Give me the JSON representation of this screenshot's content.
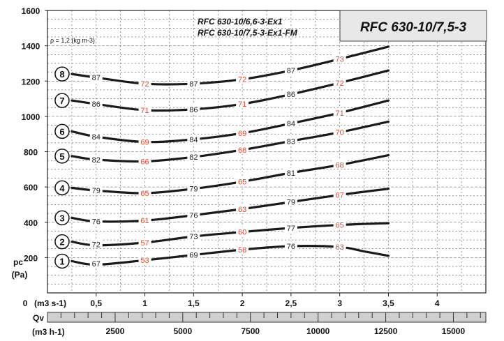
{
  "chart_data": {
    "type": "line",
    "title": "RFC 630-10/7,5-3",
    "subtitle_lines": [
      "RFC 630-10/6,6-3-Ex1",
      "RFC 630-10/7,5-3-Ex1-FM"
    ],
    "density_note": "ρ = 1,2 (kg m-3)",
    "ylabel": {
      "symbol": "pc",
      "unit": "(Pa)"
    },
    "xlabel_m3s": "(m3 s-1)",
    "xlabel_m3h": {
      "symbol": "Qv",
      "unit": "(m3 h-1)"
    },
    "x_origin_label": "0",
    "xlim": [
      0,
      4.5
    ],
    "ylim": [
      0,
      1600
    ],
    "y_ticks": [
      {
        "v": 200,
        "label": "200"
      },
      {
        "v": 400,
        "label": "400"
      },
      {
        "v": 600,
        "label": "600"
      },
      {
        "v": 800,
        "label": "800"
      },
      {
        "v": 1000,
        "label": "1000"
      },
      {
        "v": 1200,
        "label": "1200"
      },
      {
        "v": 1400,
        "label": "1400"
      },
      {
        "v": 1600,
        "label": "1600"
      }
    ],
    "x_ticks": [
      {
        "v": 0.5,
        "label": "0,5"
      },
      {
        "v": 1,
        "label": "1"
      },
      {
        "v": 1.5,
        "label": "1,5"
      },
      {
        "v": 2,
        "label": "2"
      },
      {
        "v": 2.5,
        "label": "2,5"
      },
      {
        "v": 3,
        "label": "3"
      },
      {
        "v": 3.5,
        "label": "3,5"
      },
      {
        "v": 4,
        "label": "4"
      }
    ],
    "x_ticks_m3h": [
      {
        "v": 2500,
        "label": "2500"
      },
      {
        "v": 5000,
        "label": "5000"
      },
      {
        "v": 7500,
        "label": "7500"
      },
      {
        "v": 10000,
        "label": "10000"
      },
      {
        "v": 12500,
        "label": "12500"
      },
      {
        "v": 15000,
        "label": "15000"
      }
    ],
    "grid": true,
    "series": [
      {
        "name": "1",
        "points": [
          [
            0.25,
            180
          ],
          [
            0.5,
            160
          ],
          [
            1,
            185
          ],
          [
            1.5,
            215
          ],
          [
            2,
            245
          ],
          [
            2.5,
            265
          ],
          [
            3,
            260
          ],
          [
            3.25,
            235
          ],
          [
            3.5,
            210
          ]
        ]
      },
      {
        "name": "2",
        "points": [
          [
            0.25,
            290
          ],
          [
            0.5,
            270
          ],
          [
            1,
            285
          ],
          [
            1.5,
            320
          ],
          [
            2,
            345
          ],
          [
            2.5,
            368
          ],
          [
            3,
            385
          ],
          [
            3.5,
            395
          ]
        ]
      },
      {
        "name": "3",
        "points": [
          [
            0.25,
            425
          ],
          [
            0.5,
            405
          ],
          [
            1,
            410
          ],
          [
            1.5,
            440
          ],
          [
            2,
            475
          ],
          [
            2.5,
            515
          ],
          [
            3,
            555
          ],
          [
            3.5,
            590
          ]
        ]
      },
      {
        "name": "4",
        "points": [
          [
            0.25,
            595
          ],
          [
            0.5,
            580
          ],
          [
            1,
            565
          ],
          [
            1.5,
            590
          ],
          [
            2,
            630
          ],
          [
            2.5,
            680
          ],
          [
            3,
            725
          ],
          [
            3.5,
            780
          ]
        ]
      },
      {
        "name": "5",
        "points": [
          [
            0.25,
            775
          ],
          [
            0.5,
            755
          ],
          [
            1,
            745
          ],
          [
            1.5,
            770
          ],
          [
            2,
            810
          ],
          [
            2.5,
            860
          ],
          [
            3,
            910
          ],
          [
            3.5,
            970
          ]
        ]
      },
      {
        "name": "6",
        "points": [
          [
            0.25,
            915
          ],
          [
            0.5,
            885
          ],
          [
            1,
            855
          ],
          [
            1.5,
            870
          ],
          [
            2,
            905
          ],
          [
            2.5,
            960
          ],
          [
            3,
            1020
          ],
          [
            3.5,
            1090
          ]
        ]
      },
      {
        "name": "7",
        "points": [
          [
            0.25,
            1090
          ],
          [
            0.5,
            1070
          ],
          [
            1,
            1035
          ],
          [
            1.5,
            1040
          ],
          [
            2,
            1070
          ],
          [
            2.5,
            1125
          ],
          [
            3,
            1190
          ],
          [
            3.5,
            1260
          ]
        ]
      },
      {
        "name": "8",
        "points": [
          [
            0.25,
            1240
          ],
          [
            0.5,
            1220
          ],
          [
            1,
            1185
          ],
          [
            1.5,
            1185
          ],
          [
            2,
            1210
          ],
          [
            2.5,
            1260
          ],
          [
            3,
            1325
          ],
          [
            3.5,
            1395
          ]
        ]
      }
    ],
    "annotations_black": [
      {
        "x": 0.5,
        "y": 165,
        "label": "67"
      },
      {
        "x": 1.5,
        "y": 215,
        "label": "69"
      },
      {
        "x": 2.5,
        "y": 265,
        "label": "76"
      },
      {
        "x": 0.5,
        "y": 275,
        "label": "72"
      },
      {
        "x": 1.5,
        "y": 320,
        "label": "73"
      },
      {
        "x": 2.5,
        "y": 368,
        "label": "77"
      },
      {
        "x": 0.5,
        "y": 405,
        "label": "76"
      },
      {
        "x": 1.5,
        "y": 440,
        "label": "76"
      },
      {
        "x": 2.5,
        "y": 515,
        "label": "79"
      },
      {
        "x": 0.5,
        "y": 580,
        "label": "79"
      },
      {
        "x": 1.5,
        "y": 590,
        "label": "79"
      },
      {
        "x": 2.5,
        "y": 680,
        "label": "81"
      },
      {
        "x": 0.5,
        "y": 755,
        "label": "82"
      },
      {
        "x": 1.5,
        "y": 770,
        "label": "82"
      },
      {
        "x": 2.5,
        "y": 860,
        "label": "83"
      },
      {
        "x": 0.5,
        "y": 885,
        "label": "84"
      },
      {
        "x": 1.5,
        "y": 870,
        "label": "84"
      },
      {
        "x": 2.5,
        "y": 960,
        "label": "84"
      },
      {
        "x": 0.5,
        "y": 1070,
        "label": "86"
      },
      {
        "x": 1.5,
        "y": 1040,
        "label": "86"
      },
      {
        "x": 2.5,
        "y": 1125,
        "label": "86"
      },
      {
        "x": 0.5,
        "y": 1220,
        "label": "87"
      },
      {
        "x": 1.5,
        "y": 1185,
        "label": "87"
      },
      {
        "x": 2.5,
        "y": 1260,
        "label": "87"
      }
    ],
    "annotations_red": [
      {
        "x": 1,
        "y": 185,
        "label": "53"
      },
      {
        "x": 2,
        "y": 245,
        "label": "58"
      },
      {
        "x": 3,
        "y": 260,
        "label": "63"
      },
      {
        "x": 1,
        "y": 285,
        "label": "57"
      },
      {
        "x": 2,
        "y": 345,
        "label": "60"
      },
      {
        "x": 3,
        "y": 385,
        "label": "65"
      },
      {
        "x": 1,
        "y": 410,
        "label": "61"
      },
      {
        "x": 2,
        "y": 475,
        "label": "63"
      },
      {
        "x": 3,
        "y": 555,
        "label": "67"
      },
      {
        "x": 1,
        "y": 565,
        "label": "65"
      },
      {
        "x": 2,
        "y": 630,
        "label": "65"
      },
      {
        "x": 3,
        "y": 725,
        "label": "68"
      },
      {
        "x": 1,
        "y": 745,
        "label": "66"
      },
      {
        "x": 2,
        "y": 810,
        "label": "68"
      },
      {
        "x": 3,
        "y": 910,
        "label": "70"
      },
      {
        "x": 1,
        "y": 855,
        "label": "69"
      },
      {
        "x": 2,
        "y": 905,
        "label": "69"
      },
      {
        "x": 3,
        "y": 1020,
        "label": "71"
      },
      {
        "x": 1,
        "y": 1035,
        "label": "71"
      },
      {
        "x": 2,
        "y": 1070,
        "label": "71"
      },
      {
        "x": 3,
        "y": 1190,
        "label": "72"
      },
      {
        "x": 1,
        "y": 1185,
        "label": "72"
      },
      {
        "x": 2,
        "y": 1210,
        "label": "72"
      },
      {
        "x": 3,
        "y": 1325,
        "label": "73"
      }
    ],
    "colors": {
      "curve": "#1a1a1a",
      "red_label": "#e0462a",
      "title_box": "#e8e8e8",
      "bar_fill": "#cfcfcf"
    }
  }
}
